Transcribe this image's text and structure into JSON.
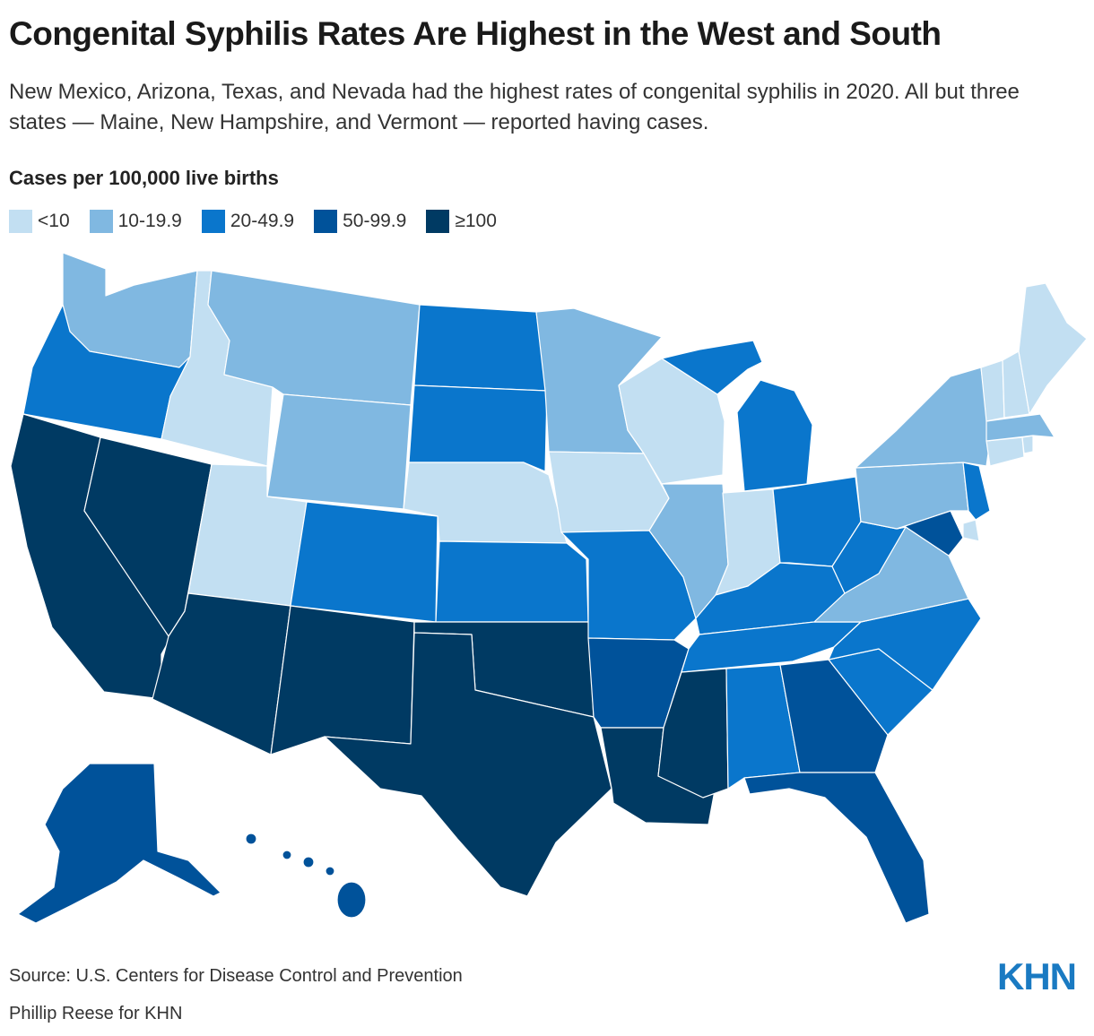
{
  "title": "Congenital Syphilis Rates Are Highest in the West and South",
  "subtitle": "New Mexico, Arizona, Texas, and Nevada had the highest rates of congenital syphilis in 2020. All but three states — Maine, New Hampshire, and Vermont — reported having cases.",
  "legend": {
    "title": "Cases per 100,000 live births",
    "bins": [
      {
        "label": "<10",
        "color": "#c2dff2"
      },
      {
        "label": "10-19.9",
        "color": "#80b8e1"
      },
      {
        "label": "20-49.9",
        "color": "#0a76cc"
      },
      {
        "label": "50-99.9",
        "color": "#00529a"
      },
      {
        "label": "≥100",
        "color": "#003a63"
      }
    ]
  },
  "states": [
    {
      "name": "Washington",
      "bin": 1
    },
    {
      "name": "Oregon",
      "bin": 2
    },
    {
      "name": "California",
      "bin": 4
    },
    {
      "name": "Nevada",
      "bin": 4
    },
    {
      "name": "Idaho",
      "bin": 0
    },
    {
      "name": "Montana",
      "bin": 1
    },
    {
      "name": "Wyoming",
      "bin": 1
    },
    {
      "name": "Utah",
      "bin": 0
    },
    {
      "name": "Arizona",
      "bin": 4
    },
    {
      "name": "Colorado",
      "bin": 2
    },
    {
      "name": "New Mexico",
      "bin": 4
    },
    {
      "name": "North Dakota",
      "bin": 2
    },
    {
      "name": "South Dakota",
      "bin": 2
    },
    {
      "name": "Nebraska",
      "bin": 0
    },
    {
      "name": "Kansas",
      "bin": 2
    },
    {
      "name": "Oklahoma",
      "bin": 4
    },
    {
      "name": "Texas",
      "bin": 4
    },
    {
      "name": "Minnesota",
      "bin": 1
    },
    {
      "name": "Iowa",
      "bin": 0
    },
    {
      "name": "Missouri",
      "bin": 2
    },
    {
      "name": "Arkansas",
      "bin": 3
    },
    {
      "name": "Louisiana",
      "bin": 4
    },
    {
      "name": "Wisconsin",
      "bin": 0
    },
    {
      "name": "Illinois",
      "bin": 1
    },
    {
      "name": "Michigan",
      "bin": 2
    },
    {
      "name": "Indiana",
      "bin": 0
    },
    {
      "name": "Ohio",
      "bin": 2
    },
    {
      "name": "Kentucky",
      "bin": 2
    },
    {
      "name": "Tennessee",
      "bin": 2
    },
    {
      "name": "Mississippi",
      "bin": 4
    },
    {
      "name": "Alabama",
      "bin": 2
    },
    {
      "name": "Georgia",
      "bin": 3
    },
    {
      "name": "Florida",
      "bin": 3
    },
    {
      "name": "South Carolina",
      "bin": 2
    },
    {
      "name": "North Carolina",
      "bin": 2
    },
    {
      "name": "Virginia",
      "bin": 1
    },
    {
      "name": "West Virginia",
      "bin": 2
    },
    {
      "name": "Maryland",
      "bin": 3
    },
    {
      "name": "Delaware",
      "bin": 0
    },
    {
      "name": "Pennsylvania",
      "bin": 1
    },
    {
      "name": "New Jersey",
      "bin": 2
    },
    {
      "name": "New York",
      "bin": 1
    },
    {
      "name": "Connecticut",
      "bin": 0
    },
    {
      "name": "Rhode Island",
      "bin": 0
    },
    {
      "name": "Massachusetts",
      "bin": 1
    },
    {
      "name": "Vermont",
      "bin": 0
    },
    {
      "name": "New Hampshire",
      "bin": 0
    },
    {
      "name": "Maine",
      "bin": 0
    },
    {
      "name": "Alaska",
      "bin": 3
    },
    {
      "name": "Hawaii",
      "bin": 3
    }
  ],
  "source": "Source: U.S. Centers for Disease Control and Prevention",
  "credit": "Phillip Reese for KHN",
  "logo": "KHN"
}
